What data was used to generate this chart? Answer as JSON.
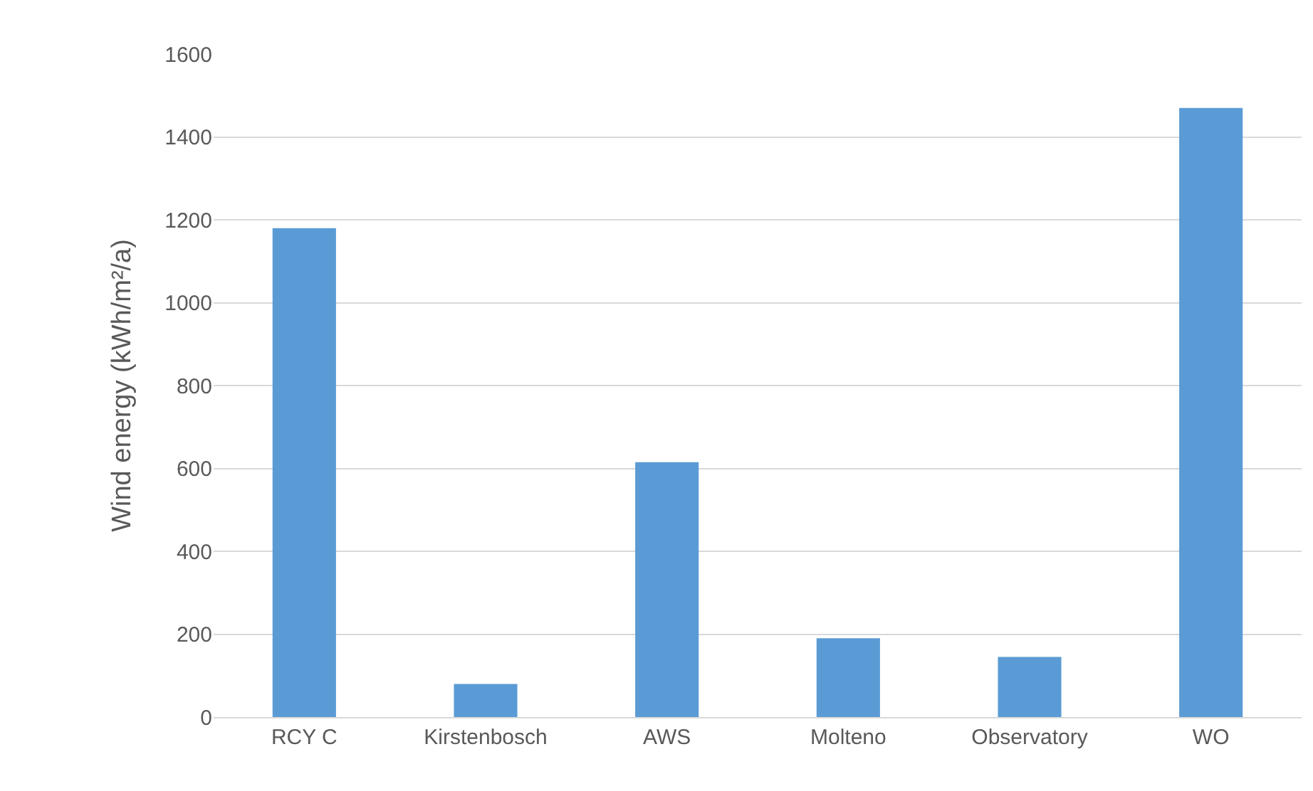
{
  "chart_data": {
    "type": "bar",
    "ylabel": "Wind energy (kWh/m²/a)",
    "categories": [
      "RCY C",
      "Kirstenbosch",
      "AWS",
      "Molteno",
      "Observatory",
      "WO"
    ],
    "values": [
      1180,
      80,
      615,
      190,
      145,
      1470
    ],
    "color": "#5b9bd5",
    "ylim": [
      0,
      1600
    ],
    "yticks": [
      0,
      200,
      400,
      600,
      800,
      1000,
      1200,
      1400,
      1600
    ],
    "grid": "y"
  }
}
